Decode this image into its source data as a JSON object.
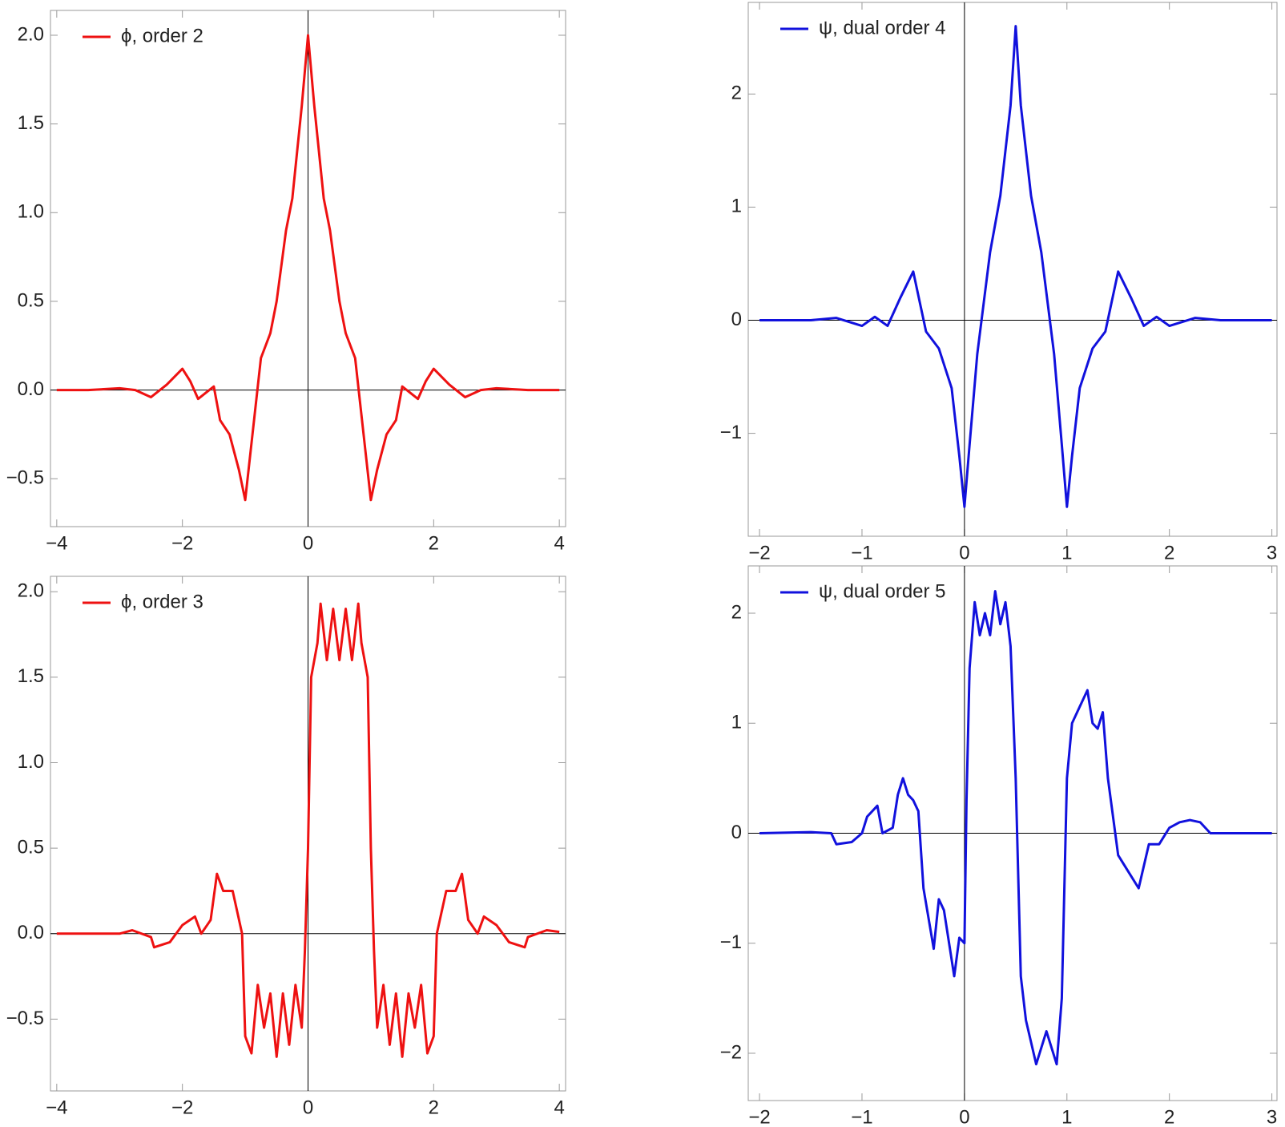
{
  "chart_data": [
    {
      "type": "line",
      "x": [
        -4,
        -3.5,
        -3,
        -2.75,
        -2.5,
        -2.25,
        -2,
        -1.875,
        -1.75,
        -1.5,
        -1.4,
        -1.25,
        -1.1,
        -1,
        -0.9,
        -0.75,
        -0.6,
        -0.5,
        -0.35,
        -0.25,
        -0.1,
        0,
        0.1,
        0.25,
        0.35,
        0.5,
        0.6,
        0.75,
        0.9,
        1,
        1.1,
        1.25,
        1.4,
        1.5,
        1.75,
        1.875,
        2,
        2.25,
        2.5,
        2.75,
        3,
        3.5,
        4
      ],
      "series": [
        {
          "name": "ϕ, order 2",
          "color": "#ee1111",
          "values": [
            0,
            0,
            0.01,
            0,
            -0.04,
            0.03,
            0.12,
            0.05,
            -0.05,
            0.02,
            -0.17,
            -0.25,
            -0.45,
            -0.62,
            -0.3,
            0.18,
            0.32,
            0.5,
            0.9,
            1.08,
            1.6,
            2.0,
            1.6,
            1.08,
            0.9,
            0.5,
            0.32,
            0.18,
            -0.3,
            -0.62,
            -0.45,
            -0.25,
            -0.17,
            0.02,
            -0.05,
            0.05,
            0.12,
            0.03,
            -0.04,
            0,
            0.01,
            0,
            0
          ]
        }
      ],
      "xlim": [
        -4.1,
        4.1
      ],
      "ylim": [
        -0.77,
        2.14
      ],
      "xticks": [
        {
          "value": -4,
          "label": "−4"
        },
        {
          "value": -2,
          "label": "−2"
        },
        0,
        2,
        4
      ],
      "yticks": [
        {
          "value": -0.5,
          "label": "−0.5"
        },
        {
          "value": 0,
          "label": "0.0"
        },
        0.5,
        {
          "value": 1,
          "label": "1.0"
        },
        1.5,
        {
          "value": 2,
          "label": "2.0"
        }
      ]
    },
    {
      "type": "line",
      "x": [
        -2,
        -1.5,
        -1.25,
        -1,
        -0.875,
        -0.75,
        -0.625,
        -0.5,
        -0.375,
        -0.25,
        -0.125,
        -0.05,
        0,
        0.05,
        0.125,
        0.25,
        0.35,
        0.45,
        0.5,
        0.55,
        0.65,
        0.75,
        0.875,
        0.95,
        1,
        1.05,
        1.125,
        1.25,
        1.375,
        1.5,
        1.625,
        1.75,
        1.875,
        2,
        2.25,
        2.5,
        3
      ],
      "series": [
        {
          "name": "ψ, dual order 4",
          "color": "#1111dd",
          "values": [
            0,
            0,
            0.02,
            -0.05,
            0.03,
            -0.05,
            0.2,
            0.43,
            -0.1,
            -0.25,
            -0.6,
            -1.2,
            -1.65,
            -1.1,
            -0.3,
            0.6,
            1.1,
            1.9,
            2.6,
            1.9,
            1.1,
            0.6,
            -0.3,
            -1.1,
            -1.65,
            -1.2,
            -0.6,
            -0.25,
            -0.1,
            0.43,
            0.2,
            -0.05,
            0.03,
            -0.05,
            0.02,
            0,
            0
          ]
        }
      ],
      "xlim": [
        -2.11,
        3.05
      ],
      "ylim": [
        -1.91,
        2.81
      ],
      "xticks": [
        {
          "value": -2,
          "label": "−2"
        },
        {
          "value": -1,
          "label": "−1"
        },
        0,
        1,
        2,
        3
      ],
      "yticks": [
        {
          "value": -1,
          "label": "−1"
        },
        0,
        1,
        2
      ]
    },
    {
      "type": "line",
      "x": [
        -4,
        -3,
        -2.8,
        -2.5,
        -2.45,
        -2.2,
        -2,
        -1.8,
        -1.7,
        -1.55,
        -1.45,
        -1.35,
        -1.2,
        -1.05,
        -1,
        -0.9,
        -0.8,
        -0.7,
        -0.6,
        -0.5,
        -0.4,
        -0.3,
        -0.2,
        -0.1,
        -0.05,
        0,
        0.05,
        0.15,
        0.2,
        0.3,
        0.4,
        0.5,
        0.6,
        0.7,
        0.8,
        0.85,
        0.95,
        1,
        1.05,
        1.1,
        1.2,
        1.3,
        1.4,
        1.5,
        1.6,
        1.7,
        1.8,
        1.9,
        2,
        2.05,
        2.2,
        2.35,
        2.45,
        2.55,
        2.7,
        2.8,
        3,
        3.2,
        3.45,
        3.5,
        3.8,
        4
      ],
      "series": [
        {
          "name": "ϕ, order 3",
          "color": "#ee1111",
          "values": [
            0,
            0,
            0.02,
            -0.02,
            -0.08,
            -0.05,
            0.05,
            0.1,
            0,
            0.08,
            0.35,
            0.25,
            0.25,
            0,
            -0.6,
            -0.7,
            -0.3,
            -0.55,
            -0.35,
            -0.72,
            -0.35,
            -0.65,
            -0.3,
            -0.55,
            -0.1,
            0.5,
            1.5,
            1.7,
            1.93,
            1.6,
            1.9,
            1.6,
            1.9,
            1.6,
            1.93,
            1.7,
            1.5,
            0.5,
            -0.1,
            -0.55,
            -0.3,
            -0.65,
            -0.35,
            -0.72,
            -0.35,
            -0.55,
            -0.3,
            -0.7,
            -0.6,
            0,
            0.25,
            0.25,
            0.35,
            0.08,
            0,
            0.1,
            0.05,
            -0.05,
            -0.08,
            -0.02,
            0.02,
            0.01
          ]
        }
      ],
      "xlim": [
        -4.1,
        4.1
      ],
      "ylim": [
        -0.92,
        2.09
      ],
      "xticks": [
        {
          "value": -4,
          "label": "−4"
        },
        {
          "value": -2,
          "label": "−2"
        },
        0,
        2,
        4
      ],
      "yticks": [
        {
          "value": -0.5,
          "label": "−0.5"
        },
        {
          "value": 0,
          "label": "0.0"
        },
        0.5,
        {
          "value": 1,
          "label": "1.0"
        },
        1.5,
        {
          "value": 2,
          "label": "2.0"
        }
      ]
    },
    {
      "type": "line",
      "x": [
        -2,
        -1.5,
        -1.3,
        -1.25,
        -1.1,
        -1,
        -0.95,
        -0.85,
        -0.8,
        -0.7,
        -0.65,
        -0.6,
        -0.55,
        -0.5,
        -0.45,
        -0.4,
        -0.3,
        -0.25,
        -0.2,
        -0.15,
        -0.1,
        -0.05,
        0,
        0.02,
        0.05,
        0.1,
        0.15,
        0.2,
        0.25,
        0.3,
        0.35,
        0.4,
        0.45,
        0.5,
        0.55,
        0.6,
        0.7,
        0.8,
        0.9,
        0.95,
        1,
        1.05,
        1.1,
        1.2,
        1.25,
        1.3,
        1.35,
        1.4,
        1.5,
        1.6,
        1.7,
        1.8,
        1.9,
        2,
        2.1,
        2.2,
        2.3,
        2.4,
        3
      ],
      "series": [
        {
          "name": "ψ, dual order 5",
          "color": "#1111dd",
          "values": [
            0,
            0.01,
            0,
            -0.1,
            -0.08,
            0,
            0.15,
            0.25,
            0,
            0.05,
            0.35,
            0.5,
            0.35,
            0.3,
            0.2,
            -0.5,
            -1.05,
            -0.6,
            -0.7,
            -1.0,
            -1.3,
            -0.95,
            -1.0,
            0.3,
            1.5,
            2.1,
            1.8,
            2.0,
            1.8,
            2.2,
            1.9,
            2.1,
            1.7,
            0.5,
            -1.3,
            -1.7,
            -2.1,
            -1.8,
            -2.1,
            -1.5,
            0.5,
            1.0,
            1.1,
            1.3,
            1.0,
            0.95,
            1.1,
            0.5,
            -0.2,
            -0.35,
            -0.5,
            -0.1,
            -0.1,
            0.05,
            0.1,
            0.12,
            0.1,
            0,
            0
          ]
        }
      ],
      "xlim": [
        -2.11,
        3.05
      ],
      "ylim": [
        -2.43,
        2.43
      ],
      "xticks": [
        {
          "value": -2,
          "label": "−2"
        },
        {
          "value": -1,
          "label": "−1"
        },
        0,
        1,
        2,
        3
      ],
      "yticks": [
        {
          "value": -2,
          "label": "−2"
        },
        {
          "value": -1,
          "label": "−1"
        },
        0,
        1,
        2
      ]
    }
  ]
}
